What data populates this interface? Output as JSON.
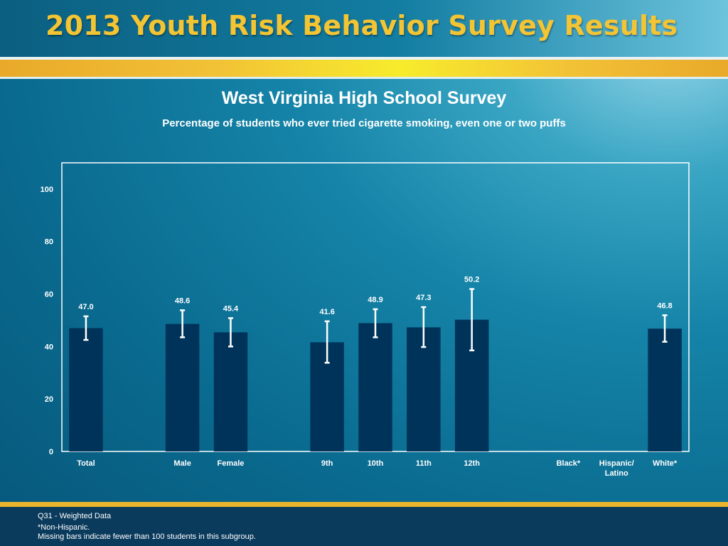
{
  "header": {
    "title": "2013 Youth Risk Behavior Survey Results"
  },
  "chart_data": {
    "type": "bar",
    "title": "West Virginia High School Survey",
    "subtitle": "Percentage of students who ever tried cigarette smoking, even one or two puffs",
    "categories": [
      "Total",
      "",
      "Male",
      "Female",
      "",
      "9th",
      "10th",
      "11th",
      "12th",
      "",
      "Black*",
      "Hispanic/\nLatino",
      "White*"
    ],
    "values": [
      47.0,
      null,
      48.6,
      45.4,
      null,
      41.6,
      48.9,
      47.3,
      50.2,
      null,
      null,
      null,
      46.8
    ],
    "value_labels": [
      "47.0",
      "",
      "48.6",
      "45.4",
      "",
      "41.6",
      "48.9",
      "47.3",
      "50.2",
      "",
      "",
      "",
      "46.8"
    ],
    "ci_low": [
      42.5,
      null,
      43.5,
      40.0,
      null,
      33.8,
      43.5,
      39.8,
      38.5,
      null,
      null,
      null,
      41.8
    ],
    "ci_high": [
      51.5,
      null,
      53.8,
      50.8,
      null,
      49.6,
      54.2,
      55.0,
      61.9,
      null,
      null,
      null,
      51.9
    ],
    "ylim": [
      0,
      110
    ],
    "yticks": [
      0,
      20,
      40,
      60,
      80,
      100
    ],
    "xlabel": "",
    "ylabel": "",
    "grid": false,
    "legend": "none",
    "colors": {
      "bar": "#00335a",
      "error_bar": "#ffffff",
      "axis": "#ffffff",
      "text": "#ffffff"
    }
  },
  "footer": {
    "note1": "Q31 - Weighted Data",
    "note2": "*Non-Hispanic.",
    "note3": "Missing bars indicate fewer than 100 students in this subgroup."
  },
  "colors": {
    "title_gold": "#f3c433",
    "gold_bar": "#f2c236",
    "footer_band": "#0a3a5c"
  }
}
